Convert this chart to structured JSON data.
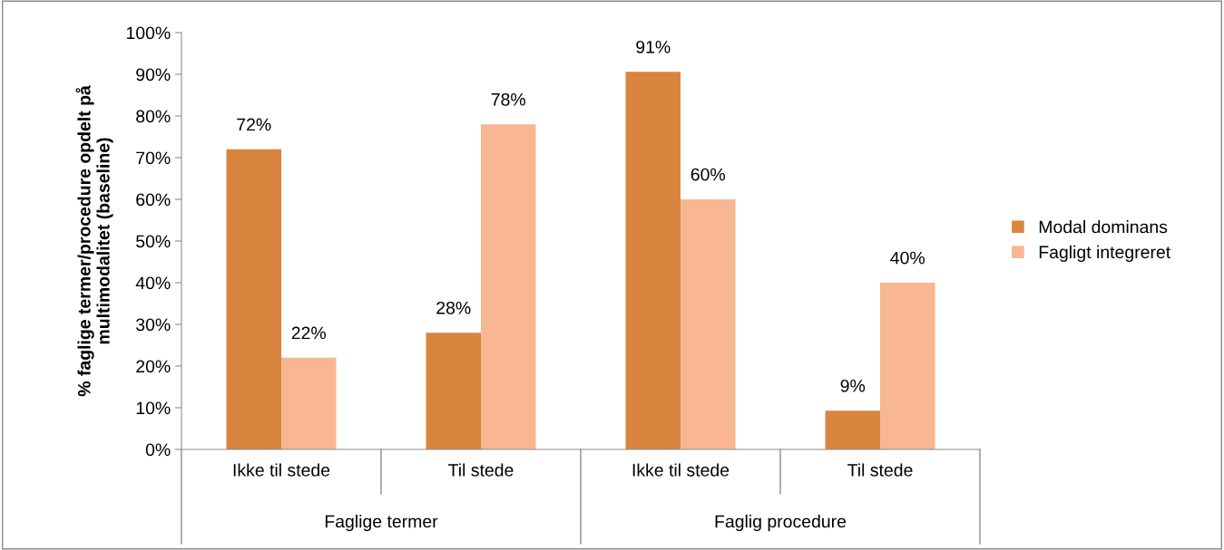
{
  "chart_data": {
    "type": "bar",
    "ylabel": "% faglige termer/procedure opdelt på\nmultimodalitet (baseline)",
    "categories": [
      "Ikke til stede",
      "Til stede",
      "Ikke til stede",
      "Til stede"
    ],
    "series": [
      {
        "name": "Modal dominans",
        "color": "#d9843f",
        "values": [
          72,
          28,
          90.6,
          9.3
        ],
        "value_labels": [
          "72%",
          "28%",
          "91%",
          "9%"
        ]
      },
      {
        "name": "Fagligt integreret",
        "color": "#f9b692",
        "values": [
          22,
          78,
          60,
          40
        ],
        "value_labels": [
          "22%",
          "78%",
          "60%",
          "40%"
        ]
      }
    ],
    "annotations": [
      "Faglige termer",
      "Faglig procedure"
    ],
    "ylim": [
      0,
      100
    ],
    "yticks": [
      {
        "value": 0,
        "label": "0%"
      },
      {
        "value": 10,
        "label": "10%"
      },
      {
        "value": 20,
        "label": "20%"
      },
      {
        "value": 30,
        "label": "30%"
      },
      {
        "value": 40,
        "label": "40%"
      },
      {
        "value": 50,
        "label": "50%"
      },
      {
        "value": 60,
        "label": "60%"
      },
      {
        "value": 70,
        "label": "70%"
      },
      {
        "value": 80,
        "label": "80%"
      },
      {
        "value": 90,
        "label": "90%"
      },
      {
        "value": 100,
        "label": "100%"
      }
    ],
    "legend": "right",
    "grid": false
  }
}
